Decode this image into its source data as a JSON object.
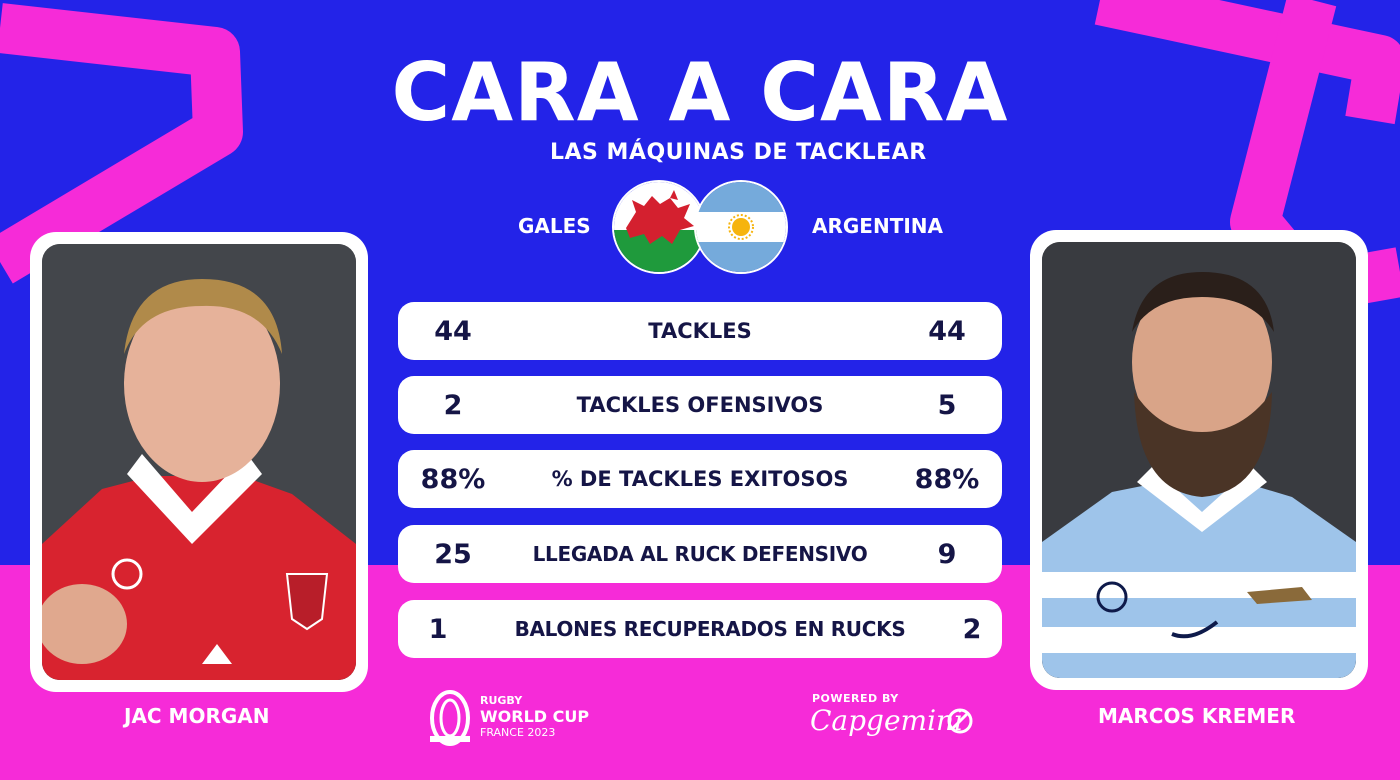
{
  "header": {
    "title": "CARA A CARA",
    "subtitle": "LAS MÁQUINAS DE TACKLEAR"
  },
  "teams": {
    "left": "GALES",
    "right": "ARGENTINA"
  },
  "stats": [
    {
      "label": "TACKLES",
      "left": "44",
      "right": "44"
    },
    {
      "label": "TACKLES OFENSIVOS",
      "left": "2",
      "right": "5"
    },
    {
      "label": "% DE TACKLES EXITOSOS",
      "left": "88%",
      "right": "88%"
    },
    {
      "label": "LLEGADA AL RUCK DEFENSIVO",
      "left": "25",
      "right": "9"
    },
    {
      "label": "BALONES RECUPERADOS EN RUCKS",
      "left": "1",
      "right": "2"
    }
  ],
  "players": {
    "left": "JAC MORGAN",
    "right": "MARCOS KREMER"
  },
  "footer": {
    "rwc_line1": "RUGBY",
    "rwc_line2": "WORLD CUP",
    "rwc_line3": "FRANCE 2023",
    "powered_by": "POWERED BY",
    "sponsor": "Capgemini"
  },
  "colors": {
    "background_blue": "#2323e8",
    "accent_pink": "#f62bd8",
    "card_white": "#ffffff",
    "stat_text": "#151546",
    "wales_red": "#d4202f",
    "wales_green": "#1f9a3c",
    "argentina_blue": "#75aadb"
  },
  "icons": [
    "wales-flag-icon",
    "argentina-flag-icon",
    "rwc-logo-icon",
    "capgemini-spade-icon"
  ]
}
